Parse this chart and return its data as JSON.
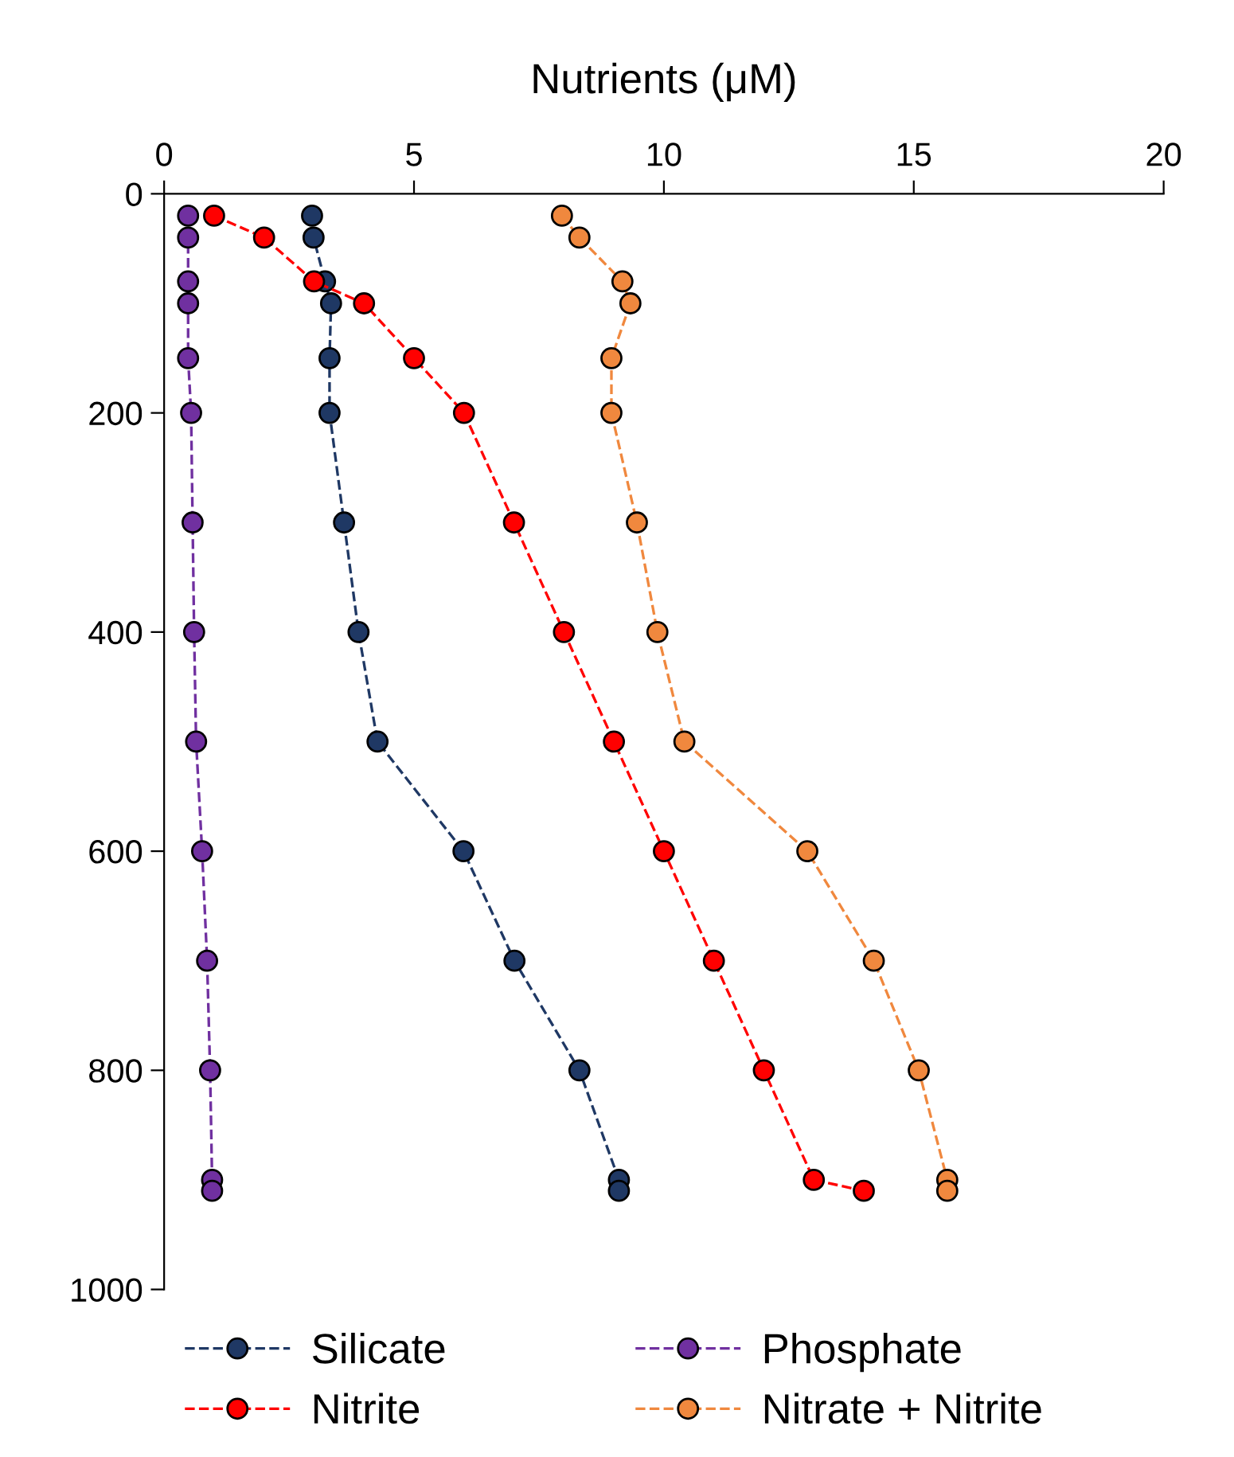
{
  "chart_data": {
    "type": "line",
    "xlabel": "Nutrients (μM)",
    "xlim": [
      0,
      20
    ],
    "xticks": [
      0,
      5,
      10,
      15,
      20
    ],
    "ylim": [
      1000,
      0
    ],
    "yticks": [
      0,
      200,
      400,
      600,
      800,
      1000
    ],
    "grid": false,
    "legend": "bottom",
    "marker": "circle",
    "line_style": "dashed",
    "series": [
      {
        "name": "Silicate",
        "color": "#1f3864",
        "x": [
          2.96,
          2.99,
          3.22,
          3.34,
          3.31,
          3.31,
          3.6,
          3.89,
          4.27,
          5.99,
          7.01,
          8.31,
          9.1,
          9.1
        ],
        "values": [
          20,
          40,
          80,
          100,
          150,
          200,
          300,
          400,
          500,
          600,
          700,
          800,
          900,
          910
        ]
      },
      {
        "name": "Nitrite",
        "color": "#ff0000",
        "x": [
          1.0,
          2.0,
          3.0,
          4.0,
          5.0,
          6.0,
          7.0,
          8.0,
          9.0,
          10.0,
          11.0,
          12.0,
          13.0,
          14.0
        ],
        "values": [
          20,
          40,
          80,
          100,
          150,
          200,
          300,
          400,
          500,
          600,
          700,
          800,
          900,
          910
        ]
      },
      {
        "name": "Phosphate",
        "color": "#7030a0",
        "x": [
          0.48,
          0.48,
          0.48,
          0.48,
          0.48,
          0.54,
          0.57,
          0.6,
          0.64,
          0.76,
          0.86,
          0.92,
          0.96,
          0.96
        ],
        "values": [
          20,
          40,
          80,
          100,
          150,
          200,
          300,
          400,
          500,
          600,
          700,
          800,
          900,
          910
        ]
      },
      {
        "name": "Nitrate + Nitrite",
        "color": "#f0883e",
        "x": [
          7.96,
          8.31,
          9.17,
          9.33,
          8.95,
          8.95,
          9.46,
          9.87,
          10.41,
          12.87,
          14.2,
          15.1,
          15.67,
          15.67
        ],
        "values": [
          20,
          40,
          80,
          100,
          150,
          200,
          300,
          400,
          500,
          600,
          700,
          800,
          900,
          910
        ]
      }
    ]
  }
}
